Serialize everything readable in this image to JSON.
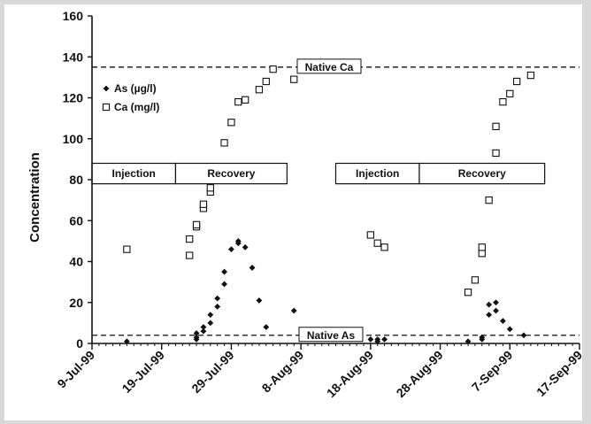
{
  "chart_data": {
    "type": "scatter",
    "ylabel": "Concentration",
    "ylim": [
      0,
      160
    ],
    "yticks": [
      0,
      20,
      40,
      60,
      80,
      100,
      120,
      140,
      160
    ],
    "xlim": [
      "1999-07-09",
      "1999-09-17"
    ],
    "xtick_labels": [
      "9-Jul-99",
      "19-Jul-99",
      "29-Jul-99",
      "8-Aug-99",
      "18-Aug-99",
      "28-Aug-99",
      "7-Sep-99",
      "17-Sep-99"
    ],
    "xtick_dates": [
      "1999-07-09",
      "1999-07-19",
      "1999-07-29",
      "1999-08-08",
      "1999-08-18",
      "1999-08-28",
      "1999-09-07",
      "1999-09-17"
    ],
    "legend_position": "top-left",
    "grid": false,
    "series": [
      {
        "name": "As (µg/l)",
        "marker": "diamond-filled",
        "color": "#111111",
        "points": [
          [
            "1999-07-14",
            1
          ],
          [
            "1999-07-24",
            2
          ],
          [
            "1999-07-24",
            3
          ],
          [
            "1999-07-24",
            5
          ],
          [
            "1999-07-25",
            6
          ],
          [
            "1999-07-25",
            8
          ],
          [
            "1999-07-26",
            10
          ],
          [
            "1999-07-26",
            14
          ],
          [
            "1999-07-27",
            18
          ],
          [
            "1999-07-27",
            22
          ],
          [
            "1999-07-28",
            29
          ],
          [
            "1999-07-28",
            35
          ],
          [
            "1999-07-29",
            46
          ],
          [
            "1999-07-30",
            49
          ],
          [
            "1999-07-30",
            50
          ],
          [
            "1999-07-31",
            47
          ],
          [
            "1999-08-01",
            37
          ],
          [
            "1999-08-02",
            21
          ],
          [
            "1999-08-03",
            8
          ],
          [
            "1999-08-07",
            16
          ],
          [
            "1999-08-18",
            2
          ],
          [
            "1999-08-19",
            1
          ],
          [
            "1999-08-19",
            2
          ],
          [
            "1999-08-20",
            2
          ],
          [
            "1999-09-01",
            1
          ],
          [
            "1999-09-03",
            2
          ],
          [
            "1999-09-03",
            3
          ],
          [
            "1999-09-04",
            14
          ],
          [
            "1999-09-04",
            19
          ],
          [
            "1999-09-05",
            20
          ],
          [
            "1999-09-05",
            16
          ],
          [
            "1999-09-06",
            11
          ],
          [
            "1999-09-07",
            7
          ],
          [
            "1999-09-09",
            4
          ]
        ]
      },
      {
        "name": "Ca (mg/l)",
        "marker": "square-open",
        "color": "#111111",
        "points": [
          [
            "1999-07-14",
            46
          ],
          [
            "1999-07-23",
            43
          ],
          [
            "1999-07-23",
            51
          ],
          [
            "1999-07-24",
            57
          ],
          [
            "1999-07-24",
            58
          ],
          [
            "1999-07-25",
            66
          ],
          [
            "1999-07-25",
            68
          ],
          [
            "1999-07-26",
            74
          ],
          [
            "1999-07-26",
            76
          ],
          [
            "1999-07-28",
            98
          ],
          [
            "1999-07-29",
            108
          ],
          [
            "1999-07-30",
            118
          ],
          [
            "1999-07-31",
            119
          ],
          [
            "1999-08-02",
            124
          ],
          [
            "1999-08-03",
            128
          ],
          [
            "1999-08-04",
            134
          ],
          [
            "1999-08-07",
            129
          ],
          [
            "1999-08-18",
            53
          ],
          [
            "1999-08-19",
            49
          ],
          [
            "1999-08-20",
            47
          ],
          [
            "1999-09-01",
            25
          ],
          [
            "1999-09-02",
            31
          ],
          [
            "1999-09-03",
            44
          ],
          [
            "1999-09-03",
            47
          ],
          [
            "1999-09-04",
            70
          ],
          [
            "1999-09-05",
            93
          ],
          [
            "1999-09-05",
            106
          ],
          [
            "1999-09-06",
            118
          ],
          [
            "1999-09-07",
            122
          ],
          [
            "1999-09-08",
            128
          ],
          [
            "1999-09-10",
            131
          ]
        ]
      }
    ],
    "reference_lines": [
      {
        "label": "Native Ca",
        "value": 135
      },
      {
        "label": "Native As",
        "value": 4
      }
    ],
    "phase_bands": [
      {
        "y_range": [
          78,
          88
        ],
        "segments": [
          {
            "label": "Injection",
            "x_range": [
              "1999-07-09",
              "1999-07-21"
            ]
          },
          {
            "label": "Recovery",
            "x_range": [
              "1999-07-21",
              "1999-08-06"
            ]
          }
        ]
      },
      {
        "y_range": [
          78,
          88
        ],
        "segments": [
          {
            "label": "Injection",
            "x_range": [
              "1999-08-13",
              "1999-08-25"
            ]
          },
          {
            "label": "Recovery",
            "x_range": [
              "1999-08-25",
              "1999-09-12"
            ]
          }
        ]
      }
    ]
  }
}
